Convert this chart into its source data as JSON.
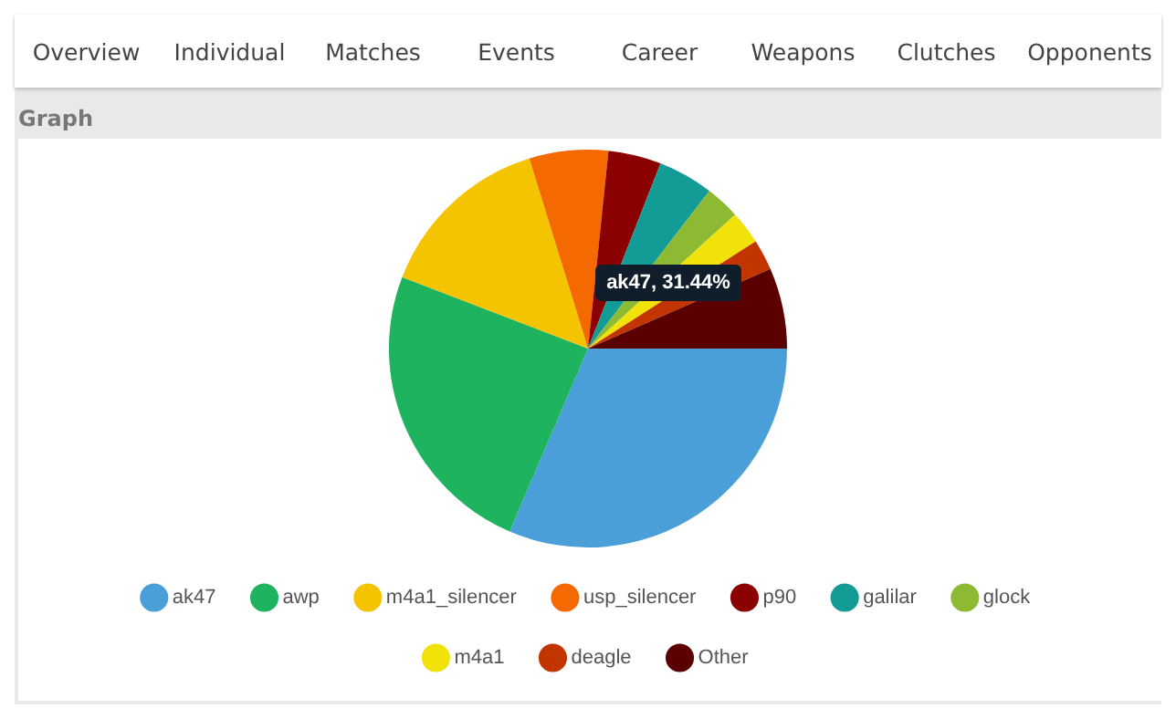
{
  "chart_data": {
    "type": "pie",
    "title": "Graph",
    "categories": [
      "ak47",
      "awp",
      "m4a1_silencer",
      "usp_silencer",
      "p90",
      "galilar",
      "glock",
      "m4a1",
      "deagle",
      "Other"
    ],
    "values": [
      31.44,
      24.4,
      14.4,
      6.4,
      4.3,
      4.5,
      2.8,
      2.7,
      2.5,
      6.56
    ],
    "colors": [
      "#4a9fd8",
      "#1db35f",
      "#f5c400",
      "#f56a00",
      "#8b0000",
      "#139b96",
      "#8dba32",
      "#f1e20a",
      "#c23400",
      "#5a0000"
    ],
    "legend": "bottom",
    "annotations": [
      "Overview",
      "Individual",
      "Matches",
      "Events",
      "Career",
      "Weapons",
      "Clutches",
      "Opponents",
      "ak47, 31.44%"
    ]
  }
}
